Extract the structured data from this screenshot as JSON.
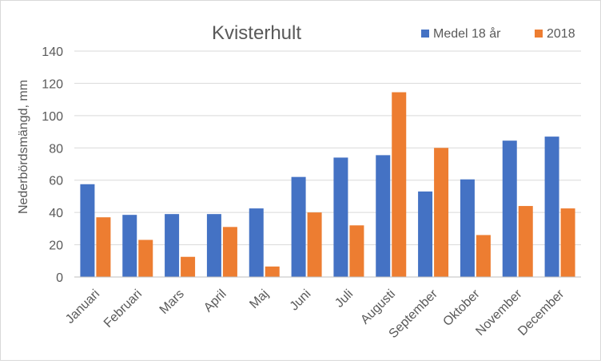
{
  "chart_data": {
    "type": "bar",
    "title": "Kvisterhult",
    "xlabel": "",
    "ylabel": "Nederbördsmängd, mm",
    "ylim": [
      0,
      140
    ],
    "yticks": [
      0,
      20,
      40,
      60,
      80,
      100,
      120,
      140
    ],
    "grid": true,
    "legend_position": "top-right",
    "categories": [
      "Januari",
      "Februari",
      "Mars",
      "April",
      "Maj",
      "Juni",
      "Juli",
      "Augusti",
      "September",
      "Oktober",
      "November",
      "December"
    ],
    "series": [
      {
        "name": "Medel 18 år",
        "color": "#4472C4",
        "values": [
          57.5,
          38.5,
          39,
          39,
          42.5,
          62,
          74,
          75.5,
          53,
          60.5,
          84.5,
          87
        ]
      },
      {
        "name": "2018",
        "color": "#ED7D31",
        "values": [
          37,
          23,
          12.5,
          31,
          6.5,
          40,
          32,
          114.5,
          80,
          26,
          44,
          42.5
        ]
      }
    ]
  }
}
